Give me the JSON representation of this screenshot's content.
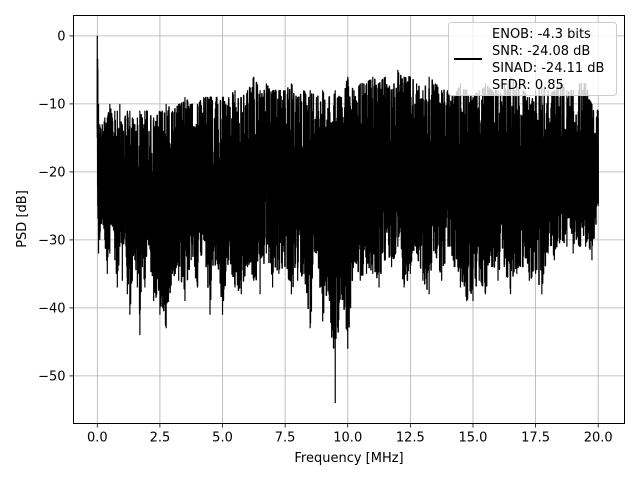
{
  "chart_data": {
    "type": "line",
    "xlabel": "Frequency [MHz]",
    "ylabel": "PSD [dB]",
    "xlim": [
      -0.95,
      21.05
    ],
    "ylim": [
      -57,
      3
    ],
    "xticks": [
      0.0,
      2.5,
      5.0,
      7.5,
      10.0,
      12.5,
      15.0,
      17.5,
      20.0
    ],
    "xtick_labels": [
      "0.0",
      "2.5",
      "5.0",
      "7.5",
      "10.0",
      "12.5",
      "15.0",
      "17.5",
      "20.0"
    ],
    "yticks": [
      0,
      -10,
      -20,
      -30,
      -40,
      -50
    ],
    "ytick_labels": [
      "0",
      "−10",
      "−20",
      "−30",
      "−40",
      "−50"
    ],
    "grid": true,
    "legend_position": "top-right",
    "line_color": "#000000",
    "series": [
      {
        "legend_lines": [
          "ENOB: -4.3 bits",
          "SNR: -24.08 dB",
          "SINAD: -24.11 dB",
          "SFDR: 0.85"
        ],
        "x": [
          0.0,
          0.02,
          0.05,
          0.1,
          0.2,
          0.3,
          0.4,
          0.5,
          0.6,
          0.7,
          0.8,
          0.9,
          1.0,
          1.1,
          1.2,
          1.3,
          1.4,
          1.5,
          1.6,
          1.7,
          1.8,
          1.9,
          2.0,
          2.25,
          2.5,
          2.75,
          3.0,
          3.25,
          3.5,
          3.75,
          4.0,
          4.25,
          4.5,
          4.75,
          5.0,
          5.25,
          5.5,
          5.75,
          6.0,
          6.25,
          6.5,
          6.75,
          7.0,
          7.25,
          7.5,
          7.75,
          8.0,
          8.25,
          8.5,
          8.75,
          9.0,
          9.25,
          9.5,
          9.75,
          10.0,
          10.25,
          10.5,
          10.75,
          11.0,
          11.25,
          11.5,
          11.75,
          12.0,
          12.25,
          12.5,
          12.75,
          13.0,
          13.25,
          13.5,
          13.75,
          14.0,
          14.25,
          14.5,
          14.75,
          15.0,
          15.25,
          15.5,
          15.75,
          16.0,
          16.25,
          16.5,
          16.75,
          17.0,
          17.25,
          17.5,
          17.75,
          18.0,
          18.25,
          18.5,
          18.75,
          19.0,
          19.25,
          19.5,
          19.75,
          20.0
        ],
        "y_max": [
          0,
          -5,
          -10,
          -13,
          -13,
          -12,
          -12,
          -10,
          -12,
          -11,
          -11,
          -10,
          -13,
          -12,
          -11,
          -11,
          -12,
          -13,
          -12,
          -11,
          -12,
          -11,
          -11,
          -12,
          -11,
          -10,
          -11,
          -10,
          -9,
          -10,
          -10,
          -9,
          -9,
          -9,
          -9,
          -9,
          -8,
          -9,
          -8,
          -6,
          -8,
          -7,
          -8,
          -8,
          -8,
          -7,
          -9,
          -8,
          -8,
          -9,
          -8,
          -9,
          -8,
          -9,
          -6,
          -8,
          -7,
          -7,
          -6,
          -7,
          -6,
          -8,
          -5,
          -6,
          -6,
          -7,
          -8,
          -6,
          -7,
          -8,
          -8,
          -9,
          -7,
          -8,
          -9,
          -8,
          -7,
          -8,
          -8,
          -7,
          -6,
          -7,
          -8,
          -9,
          -8,
          -7,
          -8,
          -8,
          -7,
          -8,
          -8,
          -7,
          -7,
          -10,
          -11
        ],
        "y_min": [
          -15,
          -25,
          -32,
          -30,
          -27,
          -30,
          -35,
          -32,
          -28,
          -33,
          -37,
          -31,
          -36,
          -29,
          -38,
          -41,
          -36,
          -33,
          -37,
          -44,
          -34,
          -37,
          -30,
          -39,
          -41,
          -43,
          -35,
          -36,
          -39,
          -33,
          -37,
          -30,
          -41,
          -33,
          -41,
          -33,
          -37,
          -38,
          -34,
          -36,
          -38,
          -32,
          -37,
          -35,
          -34,
          -38,
          -36,
          -35,
          -43,
          -32,
          -42,
          -38,
          -54,
          -38,
          -46,
          -33,
          -36,
          -35,
          -35,
          -37,
          -33,
          -34,
          -31,
          -37,
          -35,
          -32,
          -36,
          -38,
          -32,
          -36,
          -31,
          -34,
          -37,
          -39,
          -39,
          -36,
          -38,
          -34,
          -36,
          -34,
          -38,
          -35,
          -34,
          -36,
          -35,
          -38,
          -32,
          -33,
          -30,
          -31,
          -32,
          -31,
          -31,
          -33,
          -25
        ]
      }
    ]
  }
}
